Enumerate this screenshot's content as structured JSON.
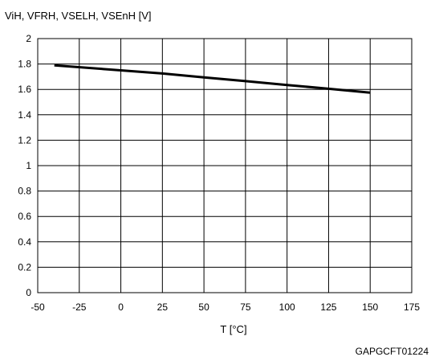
{
  "chart_data": {
    "type": "line",
    "ylabel": "ViH, VFRH, VSELH, VSEnH [V]",
    "xlabel": "T [°C]",
    "figure_id": "GAPGCFT01224",
    "xlim": [
      -50,
      175
    ],
    "ylim": [
      0,
      2
    ],
    "x_ticks": [
      "-50",
      "-25",
      "0",
      "25",
      "50",
      "75",
      "100",
      "125",
      "150",
      "175"
    ],
    "y_ticks": [
      "0",
      "0.2",
      "0.4",
      "0.6",
      "0.8",
      "1",
      "1.2",
      "1.4",
      "1.6",
      "1.8",
      "2"
    ],
    "x_tick_values": [
      -50,
      -25,
      0,
      25,
      50,
      75,
      100,
      125,
      150,
      175
    ],
    "y_tick_values": [
      0,
      0.2,
      0.4,
      0.6,
      0.8,
      1.0,
      1.2,
      1.4,
      1.6,
      1.8,
      2.0
    ],
    "grid": true,
    "series": [
      {
        "x": [
          -40,
          0,
          25,
          50,
          75,
          100,
          125,
          150
        ],
        "y": [
          1.79,
          1.75,
          1.725,
          1.695,
          1.665,
          1.635,
          1.605,
          1.575
        ],
        "color": "#000000"
      }
    ]
  }
}
